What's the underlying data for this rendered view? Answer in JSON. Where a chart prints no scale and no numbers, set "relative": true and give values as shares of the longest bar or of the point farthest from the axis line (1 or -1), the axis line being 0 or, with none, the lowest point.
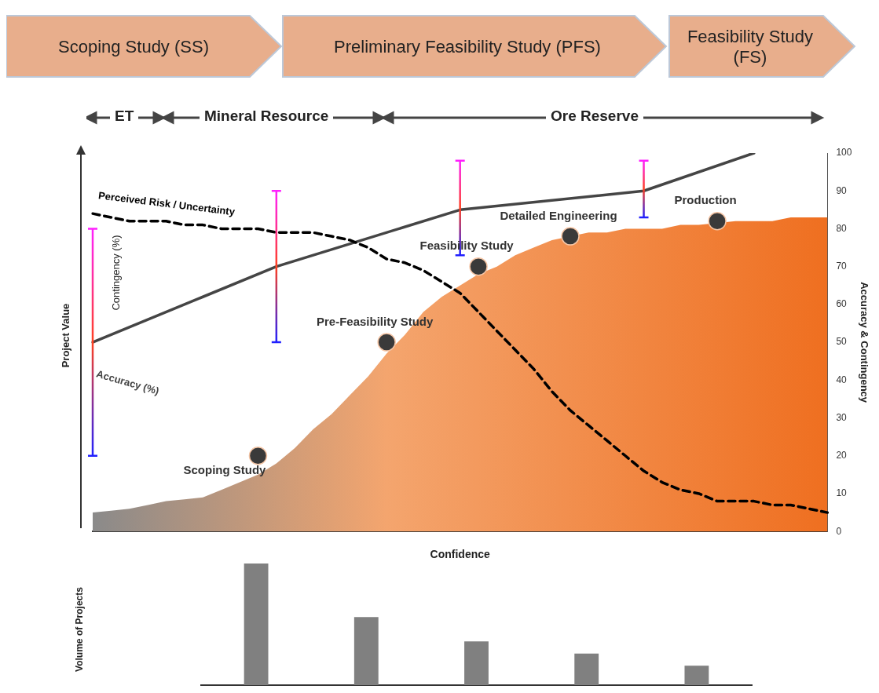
{
  "chart_data": [
    {
      "type": "area",
      "annotations": [
        "Scoping Study (SS)",
        "Preliminary Feasibility Study (PFS)",
        "Feasibility Study (FS)",
        "ET",
        "Mineral Resource",
        "Ore Reserve",
        "Contingency (%)",
        "Project Value"
      ],
      "xlabel": "Confidence",
      "ylabel": "Accuracy & Contingency",
      "categories": [
        null,
        null,
        null,
        null,
        null,
        null,
        null,
        null,
        null,
        null,
        null,
        null,
        null,
        null,
        null,
        null,
        null,
        null,
        null,
        null,
        null,
        null,
        null,
        null,
        null,
        null,
        null,
        null,
        null,
        null,
        null,
        null,
        null,
        null,
        null,
        null,
        null,
        null,
        null,
        null,
        null
      ],
      "series": [
        {
          "type": "area",
          "color": "#f4a56e",
          "values": [
            5,
            5.5,
            6,
            7,
            8,
            8.5,
            9,
            11,
            13,
            15,
            18,
            22,
            27,
            31,
            36,
            41,
            47,
            52,
            58,
            62,
            65,
            68,
            70,
            73,
            75,
            77,
            null,
            79,
            79,
            80,
            80,
            80,
            81,
            81,
            null,
            82,
            82,
            82,
            83,
            83,
            83
          ]
        },
        {
          "type": "line",
          "name": "Perceived Risk / Uncertainty",
          "color": "#000000",
          "line_style": "dashed",
          "values": [
            84,
            83,
            82,
            82,
            82,
            81,
            81,
            80,
            80,
            80,
            79,
            79,
            79,
            78,
            77,
            75,
            72,
            71,
            69,
            66,
            63,
            58,
            53,
            48,
            43,
            37,
            32,
            28,
            24,
            20,
            16,
            13,
            11,
            10,
            8,
            8,
            8,
            7,
            7,
            6,
            5
          ]
        },
        {
          "type": "line",
          "name": "Accuracy (%)",
          "color": "#454545",
          "line_style": "solid",
          "values": [
            50,
            null,
            null,
            null,
            null,
            null,
            null,
            null,
            null,
            null,
            70,
            null,
            null,
            null,
            null,
            null,
            null,
            null,
            null,
            null,
            85,
            null,
            null,
            null,
            null,
            null,
            null,
            null,
            null,
            null,
            90,
            null,
            null,
            null,
            null,
            null,
            100,
            null,
            null,
            null,
            null
          ],
          "errors": [
            [
              20,
              80
            ],
            null,
            null,
            null,
            null,
            null,
            null,
            null,
            null,
            null,
            [
              50,
              90
            ],
            null,
            null,
            null,
            null,
            null,
            null,
            null,
            null,
            null,
            [
              73,
              98
            ],
            null,
            null,
            null,
            null,
            null,
            null,
            null,
            null,
            null,
            [
              83,
              98
            ],
            null,
            null,
            null,
            null,
            null,
            null,
            null,
            null,
            null,
            null
          ]
        },
        {
          "type": "scatter",
          "color": "#3a3a3a",
          "marker": "circle",
          "values": [
            null,
            null,
            null,
            null,
            null,
            null,
            null,
            null,
            null,
            20,
            null,
            null,
            null,
            null,
            null,
            null,
            50,
            null,
            null,
            null,
            null,
            70,
            null,
            null,
            null,
            null,
            78,
            null,
            null,
            null,
            null,
            null,
            null,
            null,
            82,
            null,
            null,
            null,
            null,
            null,
            null
          ],
          "value_labels": [
            null,
            null,
            null,
            null,
            null,
            null,
            null,
            null,
            null,
            "Scoping Study",
            null,
            null,
            null,
            null,
            null,
            null,
            "Pre-Feasibility Study",
            null,
            null,
            null,
            null,
            "Feasibility Study",
            null,
            null,
            null,
            null,
            "Detailed Engineering",
            null,
            null,
            null,
            null,
            null,
            null,
            null,
            "Production",
            null,
            null,
            null,
            null,
            null,
            null
          ]
        }
      ],
      "ylim": [
        0,
        100
      ],
      "yticks": [
        0,
        10,
        20,
        30,
        40,
        50,
        60,
        70,
        80,
        90,
        100
      ],
      "tick_labels": "y",
      "grid": false,
      "legend": false
    },
    {
      "type": "bar",
      "relative": true,
      "ylabel": "Volume of Projects",
      "categories": [
        null,
        null,
        null,
        null,
        null
      ],
      "values": [
        1,
        0.56,
        0.36,
        0.26,
        0.16
      ],
      "color": "#808080",
      "tick_labels": false,
      "grid": false,
      "legend": false
    }
  ]
}
